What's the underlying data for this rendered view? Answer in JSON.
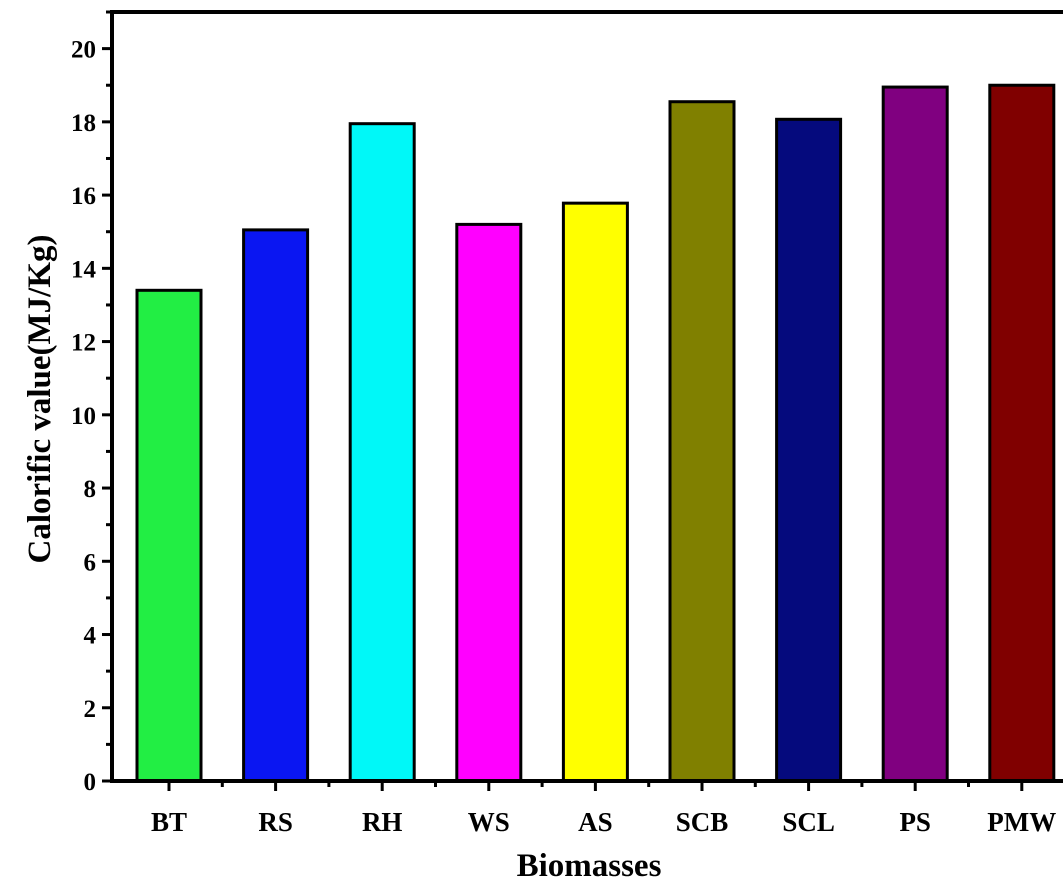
{
  "chart_data": {
    "type": "bar",
    "title": "",
    "xlabel": "Biomasses",
    "ylabel": "Calorific value(MJ/Kg)",
    "ylim": [
      0,
      21
    ],
    "yticks": [
      0,
      2,
      4,
      6,
      8,
      10,
      12,
      14,
      16,
      18,
      20
    ],
    "grid": false,
    "legend": "none",
    "categories": [
      "BT",
      "RS",
      "RH",
      "WS",
      "AS",
      "SCB",
      "SCL",
      "PS",
      "PMW"
    ],
    "values": [
      13.4,
      15.05,
      17.95,
      15.2,
      15.78,
      18.55,
      18.07,
      18.95,
      19.0
    ],
    "colors": [
      "#22ee44",
      "#0a16f2",
      "#00f8f8",
      "#ff00ff",
      "#ffff00",
      "#808000",
      "#050a7d",
      "#800080",
      "#800000"
    ]
  }
}
